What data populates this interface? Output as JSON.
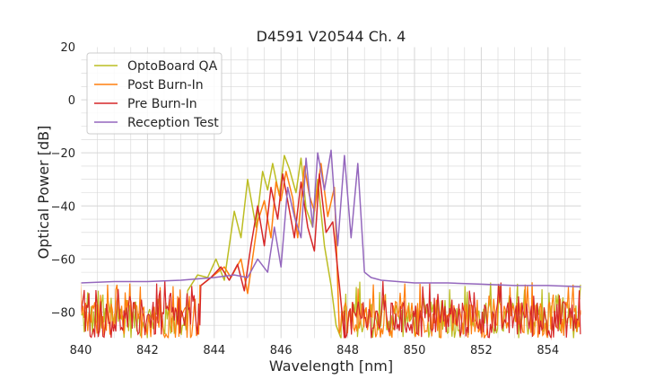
{
  "chart_data": {
    "type": "line",
    "title": "D4591 V20544 Ch. 4",
    "xlabel": "Wavelength [nm]",
    "ylabel": "Optical Power [dB]",
    "xlim": [
      840,
      855
    ],
    "ylim": [
      -90,
      20
    ],
    "xticks": [
      {
        "value": 840,
        "label": "840"
      },
      {
        "value": 842,
        "label": "842"
      },
      {
        "value": 844,
        "label": "844"
      },
      {
        "value": 846,
        "label": "846"
      },
      {
        "value": 848,
        "label": "848"
      },
      {
        "value": 850,
        "label": "850"
      },
      {
        "value": 852,
        "label": "852"
      },
      {
        "value": 854,
        "label": "854"
      }
    ],
    "yticks": [
      {
        "value": 20,
        "label": "20"
      },
      {
        "value": 0,
        "label": "0"
      },
      {
        "value": -20,
        "label": "−20"
      },
      {
        "value": -40,
        "label": "−40"
      },
      {
        "value": -60,
        "label": "−60"
      },
      {
        "value": -80,
        "label": "−80"
      }
    ],
    "grid": true,
    "grid_minor": true,
    "legend_position": "top-left",
    "series": [
      {
        "name": "OptoBoard QA",
        "color": "#bcbd22",
        "baseline": "noise",
        "x": [
          843.2,
          843.5,
          843.8,
          844.05,
          844.3,
          844.6,
          844.8,
          845.0,
          845.25,
          845.45,
          845.6,
          845.75,
          845.95,
          846.1,
          846.25,
          846.45,
          846.6,
          846.75,
          846.95,
          847.1,
          847.3,
          847.5,
          847.65,
          847.8
        ],
        "y": [
          -72,
          -66,
          -67,
          -60,
          -68,
          -42,
          -52,
          -30,
          -48,
          -27,
          -34,
          -24,
          -36,
          -21,
          -26,
          -35,
          -22,
          -41,
          -48,
          -30,
          -55,
          -70,
          -85,
          -90
        ]
      },
      {
        "name": "Post Burn-In",
        "color": "#ff7f0e",
        "baseline": "noise",
        "x": [
          843.6,
          844.0,
          844.3,
          844.5,
          844.8,
          845.0,
          845.3,
          845.5,
          845.7,
          845.85,
          846.0,
          846.15,
          846.35,
          846.5,
          846.7,
          846.85,
          847.0,
          847.2,
          847.4,
          847.6,
          847.75
        ],
        "y": [
          -70,
          -66,
          -63,
          -67,
          -60,
          -73,
          -46,
          -38,
          -52,
          -31,
          -38,
          -27,
          -37,
          -52,
          -25,
          -36,
          -42,
          -24,
          -44,
          -33,
          -88
        ]
      },
      {
        "name": "Pre Burn-In",
        "color": "#d62728",
        "baseline": "noise",
        "x": [
          843.6,
          843.9,
          844.2,
          844.45,
          844.7,
          844.9,
          845.1,
          845.3,
          845.5,
          845.7,
          845.9,
          846.05,
          846.2,
          846.4,
          846.6,
          846.8,
          847.0,
          847.15,
          847.35,
          847.55,
          847.75,
          847.9
        ],
        "y": [
          -70,
          -67,
          -63,
          -68,
          -62,
          -72,
          -55,
          -40,
          -55,
          -33,
          -45,
          -28,
          -38,
          -52,
          -31,
          -48,
          -57,
          -28,
          -50,
          -46,
          -70,
          -90
        ]
      },
      {
        "name": "Reception Test",
        "color": "#9467bd",
        "baseline": "flat",
        "x": [
          840,
          841,
          842,
          843,
          844,
          844.6,
          845.0,
          845.3,
          845.6,
          845.8,
          846.0,
          846.2,
          846.4,
          846.6,
          846.75,
          846.95,
          847.1,
          847.3,
          847.5,
          847.7,
          847.9,
          848.1,
          848.3,
          848.5,
          848.7,
          849.0,
          850.0,
          851.0,
          852.0,
          853.0,
          854.0,
          855.0
        ],
        "y": [
          -69,
          -68.5,
          -68.5,
          -68,
          -67,
          -66,
          -67,
          -60,
          -65,
          -48,
          -63,
          -33,
          -44,
          -52,
          -22,
          -48,
          -20,
          -34,
          -19,
          -55,
          -21,
          -52,
          -24,
          -65,
          -67,
          -68,
          -69,
          -69,
          -69.5,
          -70,
          -70,
          -70.5
        ]
      }
    ]
  }
}
